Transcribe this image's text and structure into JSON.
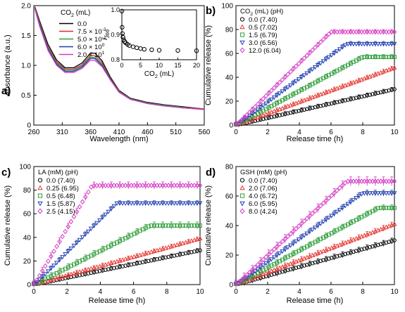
{
  "chart_data": [
    {
      "type": "line",
      "panel_label": "a)",
      "xlabel": "Wavelength (nm)",
      "ylabel": "Absorbance (a.u.)",
      "xlim": [
        260,
        560
      ],
      "ylim": [
        0,
        2
      ],
      "xticks": [
        "260",
        "310",
        "360",
        "410",
        "460",
        "510",
        "560"
      ],
      "yticks": [
        "0",
        "0.5",
        "1.0",
        "1.5",
        "2.0"
      ],
      "legend_title": "CO2 (mL)",
      "legend_placement": "top-left",
      "series": [
        {
          "name": "0.0",
          "color": "#000000",
          "x": [
            262,
            270,
            285,
            300,
            315,
            330,
            345,
            360,
            368,
            380,
            395,
            410,
            430,
            460,
            490,
            520,
            560
          ],
          "y": [
            1.98,
            1.75,
            1.35,
            1.09,
            0.96,
            0.96,
            1.04,
            1.21,
            1.2,
            1.08,
            0.8,
            0.58,
            0.45,
            0.38,
            0.34,
            0.31,
            0.27
          ]
        },
        {
          "name": "7.5 x 10-2",
          "color": "#d32f2f",
          "x": [
            262,
            270,
            285,
            300,
            315,
            330,
            345,
            360,
            368,
            380,
            395,
            410,
            430,
            460,
            490,
            520,
            560
          ],
          "y": [
            1.97,
            1.72,
            1.31,
            1.06,
            0.94,
            0.94,
            1.01,
            1.17,
            1.16,
            1.05,
            0.78,
            0.57,
            0.44,
            0.37,
            0.33,
            0.3,
            0.27
          ]
        },
        {
          "name": "5.0 x 10-1",
          "color": "#2e9e3a",
          "x": [
            262,
            270,
            285,
            300,
            315,
            330,
            345,
            360,
            368,
            380,
            395,
            410,
            430,
            460,
            490,
            520,
            560
          ],
          "y": [
            1.96,
            1.7,
            1.29,
            1.04,
            0.92,
            0.92,
            0.99,
            1.14,
            1.13,
            1.02,
            0.77,
            0.56,
            0.44,
            0.37,
            0.33,
            0.3,
            0.26
          ]
        },
        {
          "name": "6.0 x 100",
          "color": "#1f3fb0",
          "x": [
            262,
            270,
            285,
            300,
            315,
            330,
            345,
            360,
            368,
            380,
            395,
            410,
            430,
            460,
            490,
            520,
            560
          ],
          "y": [
            1.95,
            1.68,
            1.27,
            1.02,
            0.9,
            0.9,
            0.97,
            1.12,
            1.11,
            1.0,
            0.76,
            0.55,
            0.43,
            0.36,
            0.32,
            0.29,
            0.26
          ]
        },
        {
          "name": "2.0 x 101",
          "color": "#d63cc6",
          "x": [
            262,
            270,
            285,
            300,
            315,
            330,
            345,
            360,
            368,
            380,
            395,
            410,
            430,
            460,
            490,
            520,
            560
          ],
          "y": [
            1.94,
            1.66,
            1.25,
            1.0,
            0.88,
            0.88,
            0.95,
            1.09,
            1.08,
            0.98,
            0.75,
            0.55,
            0.43,
            0.36,
            0.32,
            0.29,
            0.26
          ]
        }
      ],
      "inset": {
        "type": "scatter",
        "xlabel": "CO2 (mL)",
        "ylabel": "I366",
        "xlim": [
          0,
          20
        ],
        "ylim": [
          0.8,
          1.0
        ],
        "xticks": [
          "0",
          "5",
          "10",
          "15",
          "20"
        ],
        "yticks": [
          "0.8",
          "0.9",
          "1.0"
        ],
        "x": [
          0,
          0.075,
          0.15,
          0.3,
          0.5,
          0.75,
          1.0,
          1.5,
          2.0,
          3.0,
          4.0,
          5.0,
          6.0,
          8.0,
          10.0,
          15.0,
          20.0
        ],
        "y": [
          0.995,
          0.93,
          0.905,
          0.89,
          0.88,
          0.873,
          0.868,
          0.862,
          0.857,
          0.852,
          0.848,
          0.845,
          0.842,
          0.84,
          0.838,
          0.837,
          0.836
        ]
      }
    },
    {
      "type": "scatter",
      "panel_label": "b)",
      "xlabel": "Release time (h)",
      "ylabel": "Cumulative release (%)",
      "xlim": [
        0,
        10
      ],
      "ylim": [
        0,
        100
      ],
      "xticks": [
        "0",
        "2",
        "4",
        "6",
        "8",
        "10"
      ],
      "yticks": [
        "0",
        "20",
        "40",
        "60",
        "80",
        "100"
      ],
      "legend_title": "CO2 (mL) (pH)",
      "legend_placement": "top-left",
      "series": [
        {
          "name": "0.0 (7.40)",
          "color": "#000000",
          "marker": "circle",
          "plateau": 30,
          "tau": 10,
          "err": 2
        },
        {
          "name": "0.5 (7.02)",
          "color": "#e53935",
          "marker": "triangle-up",
          "plateau": 48,
          "tau": 10,
          "err": 2
        },
        {
          "name": "1.5 (6.79)",
          "color": "#2e9e3a",
          "marker": "square",
          "plateau": 57,
          "tau": 8,
          "err": 2
        },
        {
          "name": "3.0 (6.56)",
          "color": "#1f3fb0",
          "marker": "triangle-down",
          "plateau": 68,
          "tau": 7,
          "err": 2
        },
        {
          "name": "12.0 (6.04)",
          "color": "#d63cc6",
          "marker": "diamond",
          "plateau": 78,
          "tau": 6,
          "err": 2
        }
      ]
    },
    {
      "type": "scatter",
      "panel_label": "c)",
      "xlabel": "Release time (h)",
      "ylabel": "Cumulative release (%)",
      "xlim": [
        0,
        10
      ],
      "ylim": [
        0,
        100
      ],
      "xticks": [
        "0",
        "2",
        "4",
        "6",
        "8",
        "10"
      ],
      "yticks": [
        "0",
        "20",
        "40",
        "60",
        "80",
        "100"
      ],
      "legend_title": "LA (mM) (pH)",
      "legend_placement": "top-left",
      "series": [
        {
          "name": "0.0 (7.40)",
          "color": "#000000",
          "marker": "circle",
          "plateau": 29,
          "tau": 10,
          "err": 2
        },
        {
          "name": "0.25 (6.95)",
          "color": "#e53935",
          "marker": "triangle-up",
          "plateau": 39,
          "tau": 10,
          "err": 2
        },
        {
          "name": "0.5 (6.48)",
          "color": "#2e9e3a",
          "marker": "square",
          "plateau": 50,
          "tau": 7,
          "err": 3
        },
        {
          "name": "1.5 (5.87)",
          "color": "#1f3fb0",
          "marker": "triangle-down",
          "plateau": 69,
          "tau": 5,
          "err": 2
        },
        {
          "name": "2.5 (4.15)",
          "color": "#d63cc6",
          "marker": "diamond",
          "plateau": 84,
          "tau": 3.5,
          "err": 3
        }
      ]
    },
    {
      "type": "scatter",
      "panel_label": "d)",
      "xlabel": "Release time (h)",
      "ylabel": "Cumulative release (%)",
      "xlim": [
        0,
        10
      ],
      "ylim": [
        0,
        80
      ],
      "xticks": [
        "0",
        "2",
        "4",
        "6",
        "8",
        "10"
      ],
      "yticks": [
        "0",
        "20",
        "40",
        "60",
        "80"
      ],
      "legend_title": "GSH (mM) (pH)",
      "legend_placement": "top-left",
      "series": [
        {
          "name": "0.0 (7.40)",
          "color": "#000000",
          "marker": "circle",
          "plateau": 30,
          "tau": 10,
          "err": 2
        },
        {
          "name": "2.0 (7.06)",
          "color": "#e53935",
          "marker": "triangle-up",
          "plateau": 41,
          "tau": 10,
          "err": 2
        },
        {
          "name": "4.0 (6.72)",
          "color": "#2e9e3a",
          "marker": "square",
          "plateau": 52,
          "tau": 9,
          "err": 2
        },
        {
          "name": "6.0 (5.95)",
          "color": "#1f3fb0",
          "marker": "triangle-down",
          "plateau": 62,
          "tau": 8,
          "err": 2
        },
        {
          "name": "8.0 (4.24)",
          "color": "#d63cc6",
          "marker": "diamond",
          "plateau": 70,
          "tau": 7,
          "err": 3
        }
      ]
    }
  ]
}
